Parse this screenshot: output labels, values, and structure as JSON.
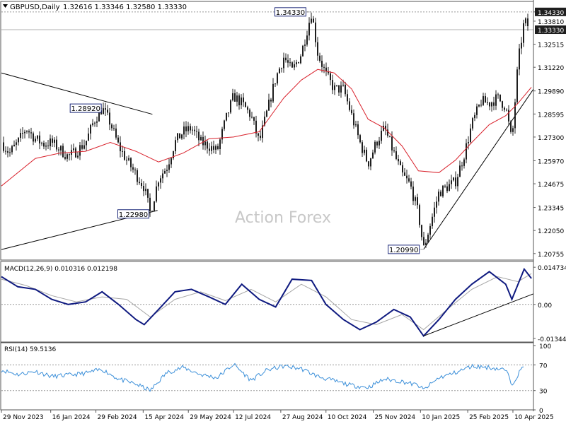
{
  "header": {
    "symbol": "GBPUSD,Daily",
    "ohlc": "1.32616 1.33346 1.32580 1.33330"
  },
  "watermark": "Action Forex",
  "colors": {
    "background": "#ffffff",
    "candles": "#1e1e1e",
    "ma": "#d9232d",
    "macd_line": "#0f1a80",
    "macd_signal": "#a6a6a6",
    "rsi": "#3b8fd9",
    "grid": "#9a9a9a",
    "trendline": "#000000"
  },
  "chart_data": [
    {
      "panel": "price",
      "type": "line",
      "ylim": [
        1.2039,
        1.3476
      ],
      "y_ticks": [
        "1.34330",
        "1.33810",
        "1.32515",
        "1.31220",
        "1.29890",
        "1.28595",
        "1.27300",
        "1.25970",
        "1.24675",
        "1.23345",
        "1.22050",
        "1.20755"
      ],
      "current_price": "1.33330",
      "high_price_label": "1.34330",
      "annotations": [
        {
          "text": "1.28920",
          "x": "2024-03-08",
          "y": 1.2892
        },
        {
          "text": "1.22980",
          "x": "2024-04-22",
          "y": 1.2298
        },
        {
          "text": "1.34330",
          "x": "2024-09-26",
          "y": 1.3433
        },
        {
          "text": "1.20990",
          "x": "2025-01-13",
          "y": 1.2099
        }
      ],
      "series": [
        {
          "kind": "price",
          "x": [
            "2023-11-29",
            "2023-12-07",
            "2023-12-15",
            "2023-12-23",
            "2024-01-01",
            "2024-01-09",
            "2024-01-17",
            "2024-01-25",
            "2024-02-02",
            "2024-02-10",
            "2024-02-19",
            "2024-02-27",
            "2024-03-06",
            "2024-03-14",
            "2024-03-22",
            "2024-03-30",
            "2024-04-08",
            "2024-04-16",
            "2024-04-22",
            "2024-04-30",
            "2024-05-08",
            "2024-05-16",
            "2024-05-24",
            "2024-06-01",
            "2024-06-10",
            "2024-06-18",
            "2024-06-26",
            "2024-07-04",
            "2024-07-12",
            "2024-07-20",
            "2024-07-29",
            "2024-08-06",
            "2024-08-14",
            "2024-08-22",
            "2024-08-30",
            "2024-09-07",
            "2024-09-16",
            "2024-09-26",
            "2024-10-02",
            "2024-10-10",
            "2024-10-18",
            "2024-10-27",
            "2024-11-04",
            "2024-11-12",
            "2024-11-20",
            "2024-11-28",
            "2024-12-06",
            "2024-12-15",
            "2024-12-23",
            "2024-12-31",
            "2025-01-08",
            "2025-01-13",
            "2025-01-20",
            "2025-01-28",
            "2025-02-05",
            "2025-02-13",
            "2025-02-21",
            "2025-03-01",
            "2025-03-10",
            "2025-03-18",
            "2025-03-26",
            "2025-04-03",
            "2025-04-09",
            "2025-04-15",
            "2025-04-21",
            "2025-04-28"
          ],
          "y": [
            1.27,
            1.264,
            1.27,
            1.278,
            1.272,
            1.269,
            1.27,
            1.266,
            1.262,
            1.265,
            1.27,
            1.282,
            1.2892,
            1.281,
            1.268,
            1.26,
            1.252,
            1.245,
            1.2298,
            1.25,
            1.256,
            1.27,
            1.276,
            1.278,
            1.27,
            1.268,
            1.265,
            1.282,
            1.296,
            1.292,
            1.285,
            1.27,
            1.288,
            1.306,
            1.318,
            1.31,
            1.32,
            1.3433,
            1.32,
            1.308,
            1.3,
            1.3,
            1.285,
            1.27,
            1.258,
            1.27,
            1.278,
            1.264,
            1.252,
            1.246,
            1.23,
            1.2099,
            1.225,
            1.242,
            1.245,
            1.248,
            1.262,
            1.28,
            1.293,
            1.292,
            1.295,
            1.29,
            1.27,
            1.315,
            1.338,
            1.3333
          ]
        },
        {
          "name": "",
          "kind": "moving-average",
          "x": [
            "2023-11-29",
            "2024-01-01",
            "2024-01-25",
            "2024-02-19",
            "2024-03-14",
            "2024-04-08",
            "2024-04-30",
            "2024-05-24",
            "2024-06-18",
            "2024-07-12",
            "2024-08-06",
            "2024-08-30",
            "2024-09-16",
            "2024-10-02",
            "2024-10-18",
            "2024-11-04",
            "2024-11-20",
            "2024-12-06",
            "2024-12-23",
            "2025-01-08",
            "2025-01-28",
            "2025-02-13",
            "2025-03-01",
            "2025-03-18",
            "2025-04-03",
            "2025-04-15",
            "2025-04-28"
          ],
          "y": [
            1.2455,
            1.261,
            1.264,
            1.265,
            1.27,
            1.265,
            1.259,
            1.264,
            1.272,
            1.273,
            1.276,
            1.295,
            1.305,
            1.311,
            1.309,
            1.3,
            1.283,
            1.278,
            1.268,
            1.254,
            1.253,
            1.26,
            1.27,
            1.28,
            1.285,
            1.292,
            1.301
          ]
        }
      ]
    },
    {
      "panel": "macd",
      "type": "line",
      "title": "MACD(12,26,9) 0.010316 0.012198",
      "ylim": [
        -0.0149,
        0.0159
      ],
      "y_ticks": [
        "0.014734",
        "0.00",
        "-0.013442"
      ],
      "series": [
        {
          "kind": "macd",
          "x": [
            "2023-11-29",
            "2023-12-15",
            "2024-01-01",
            "2024-01-17",
            "2024-02-02",
            "2024-02-19",
            "2024-03-06",
            "2024-03-22",
            "2024-04-08",
            "2024-04-16",
            "2024-04-30",
            "2024-05-16",
            "2024-06-01",
            "2024-06-18",
            "2024-07-04",
            "2024-07-20",
            "2024-08-06",
            "2024-08-22",
            "2024-09-07",
            "2024-09-26",
            "2024-10-10",
            "2024-10-27",
            "2024-11-12",
            "2024-11-28",
            "2024-12-15",
            "2024-12-31",
            "2025-01-13",
            "2025-01-28",
            "2025-02-13",
            "2025-03-01",
            "2025-03-18",
            "2025-04-03",
            "2025-04-09",
            "2025-04-21",
            "2025-04-28"
          ],
          "y": [
            0.011,
            0.007,
            0.006,
            0.002,
            0.0,
            0.001,
            0.005,
            0.0,
            -0.006,
            -0.008,
            -0.002,
            0.005,
            0.006,
            0.003,
            0.0,
            0.008,
            0.002,
            -0.001,
            0.01,
            0.0095,
            0.0,
            -0.006,
            -0.01,
            -0.007,
            -0.002,
            -0.005,
            -0.0125,
            -0.006,
            0.002,
            0.008,
            0.013,
            0.008,
            0.002,
            0.014,
            0.0103
          ]
        },
        {
          "kind": "signal",
          "x": [
            "2023-11-29",
            "2023-12-23",
            "2024-01-17",
            "2024-02-10",
            "2024-03-06",
            "2024-03-30",
            "2024-04-22",
            "2024-05-16",
            "2024-06-10",
            "2024-07-04",
            "2024-07-29",
            "2024-08-22",
            "2024-09-16",
            "2024-10-10",
            "2024-11-04",
            "2024-11-28",
            "2024-12-23",
            "2025-01-13",
            "2025-02-05",
            "2025-03-01",
            "2025-03-26",
            "2025-04-15",
            "2025-04-28"
          ],
          "y": [
            0.01,
            0.0075,
            0.0035,
            0.001,
            0.003,
            0.002,
            -0.005,
            0.002,
            0.005,
            0.0015,
            0.006,
            0.001,
            0.008,
            0.003,
            -0.006,
            -0.008,
            -0.004,
            -0.01,
            -0.002,
            0.006,
            0.011,
            0.009,
            0.0122
          ]
        }
      ]
    },
    {
      "panel": "rsi",
      "type": "line",
      "title": "RSI(14) 59.5136",
      "ylim": [
        0,
        100
      ],
      "y_ticks": [
        "100",
        "70",
        "30",
        "0"
      ],
      "series": [
        {
          "kind": "rsi",
          "x": [
            "2023-11-29",
            "2023-12-15",
            "2024-01-01",
            "2024-01-17",
            "2024-02-02",
            "2024-02-19",
            "2024-03-06",
            "2024-03-22",
            "2024-04-08",
            "2024-04-22",
            "2024-05-08",
            "2024-05-24",
            "2024-06-10",
            "2024-06-26",
            "2024-07-12",
            "2024-07-29",
            "2024-08-14",
            "2024-08-30",
            "2024-09-16",
            "2024-10-02",
            "2024-10-18",
            "2024-11-04",
            "2024-11-20",
            "2024-12-06",
            "2024-12-23",
            "2025-01-08",
            "2025-01-13",
            "2025-01-28",
            "2025-02-13",
            "2025-03-01",
            "2025-03-18",
            "2025-04-03",
            "2025-04-09",
            "2025-04-21",
            "2025-04-28"
          ],
          "y": [
            62,
            55,
            60,
            52,
            54,
            57,
            63,
            48,
            40,
            30,
            58,
            66,
            55,
            50,
            71,
            46,
            62,
            68,
            64,
            52,
            45,
            38,
            35,
            48,
            44,
            38,
            31,
            50,
            58,
            68,
            66,
            62,
            40,
            70,
            59.5
          ]
        }
      ]
    }
  ],
  "x_axis_labels": [
    "29 Nov 2023",
    "16 Jan 2024",
    "29 Feb 2024",
    "15 Apr 2024",
    "29 May 2024",
    "12 Jul 2024",
    "27 Aug 2024",
    "10 Oct 2024",
    "25 Nov 2024",
    "10 Jan 2025",
    "25 Feb 2025",
    "10 Apr 2025"
  ]
}
